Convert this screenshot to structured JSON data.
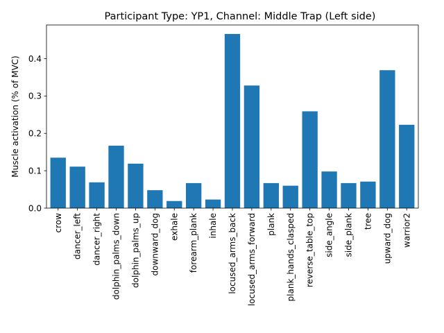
{
  "chart_data": {
    "type": "bar",
    "title": "Participant Type: YP1, Channel: Middle Trap (Left side)",
    "xlabel": "",
    "ylabel": "Muscle activation (% of MVC)",
    "ylim": [
      0,
      0.49
    ],
    "yticks": [
      "0.0",
      "0.1",
      "0.2",
      "0.3",
      "0.4"
    ],
    "grid": false,
    "bar_color": "#1f77b4",
    "categories": [
      "crow",
      "dancer_left",
      "dancer_right",
      "dolphin_palms_down",
      "dolphin_palms_up",
      "downward_dog",
      "exhale",
      "forearm_plank",
      "inhale",
      "locused_arms_back",
      "locused_arms_forward",
      "plank",
      "plank_hands_clasped",
      "reverse_table_top",
      "side_angle",
      "side_plank",
      "tree",
      "upward_dog",
      "warrior2"
    ],
    "values": [
      0.135,
      0.111,
      0.069,
      0.167,
      0.119,
      0.048,
      0.019,
      0.067,
      0.023,
      0.466,
      0.328,
      0.067,
      0.06,
      0.259,
      0.098,
      0.067,
      0.071,
      0.369,
      0.223
    ]
  }
}
